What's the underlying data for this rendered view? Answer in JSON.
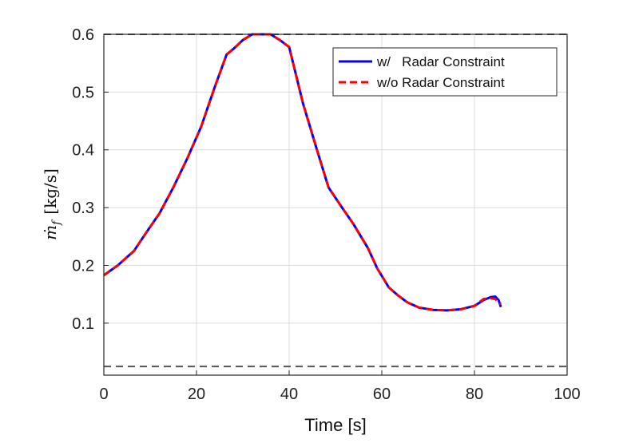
{
  "chart_data": {
    "type": "line",
    "title": "",
    "xlabel": "Time [s]",
    "ylabel": {
      "symbol": "ṁ",
      "subscript": "f",
      "unit": "[kg/s]"
    },
    "xlim": [
      0,
      100
    ],
    "ylim": [
      0.01,
      0.6
    ],
    "xticks": [
      "0",
      "20",
      "40",
      "60",
      "80",
      "100"
    ],
    "yticks": [
      "0.1",
      "0.2",
      "0.3",
      "0.4",
      "0.5",
      "0.6"
    ],
    "grid": true,
    "legend_position": "top-right",
    "bounds": {
      "upper": 0.6,
      "lower": 0.025,
      "color": "#555555"
    },
    "series": [
      {
        "name": "w/   Radar Constraint",
        "color": "#0000ff",
        "style": "solid",
        "x": [
          0,
          3,
          6.5,
          9,
          12,
          15,
          18,
          21,
          24,
          26.5,
          28,
          30,
          32,
          34,
          36,
          38,
          40,
          43,
          46,
          48.5,
          51,
          54,
          57,
          59,
          61.5,
          63.5,
          65.5,
          68,
          71,
          74,
          77,
          80,
          82,
          83.5,
          84.5,
          85.2,
          85.7
        ],
        "y": [
          0.183,
          0.2,
          0.225,
          0.255,
          0.29,
          0.335,
          0.385,
          0.44,
          0.51,
          0.565,
          0.575,
          0.59,
          0.6,
          0.6,
          0.6,
          0.59,
          0.578,
          0.48,
          0.4,
          0.335,
          0.305,
          0.27,
          0.23,
          0.195,
          0.162,
          0.148,
          0.136,
          0.127,
          0.123,
          0.122,
          0.124,
          0.13,
          0.14,
          0.145,
          0.146,
          0.14,
          0.128
        ]
      },
      {
        "name": "w/o Radar Constraint",
        "color": "#ff0000",
        "style": "dashed",
        "x": [
          0,
          3,
          6.5,
          9,
          12,
          15,
          18,
          21,
          24,
          26.5,
          28,
          30,
          32,
          34,
          36,
          38,
          40,
          43,
          46,
          48.5,
          51,
          54,
          57,
          59,
          61.5,
          63.5,
          65.5,
          68,
          71,
          74,
          77,
          80,
          82,
          83.5,
          84.5,
          85.2,
          85.7
        ],
        "y": [
          0.183,
          0.2,
          0.225,
          0.255,
          0.29,
          0.335,
          0.385,
          0.44,
          0.51,
          0.565,
          0.575,
          0.59,
          0.6,
          0.6,
          0.6,
          0.59,
          0.578,
          0.48,
          0.4,
          0.335,
          0.305,
          0.27,
          0.23,
          0.195,
          0.162,
          0.148,
          0.136,
          0.127,
          0.123,
          0.122,
          0.124,
          0.13,
          0.142,
          0.143,
          0.142,
          0.136,
          0.133
        ]
      }
    ]
  }
}
